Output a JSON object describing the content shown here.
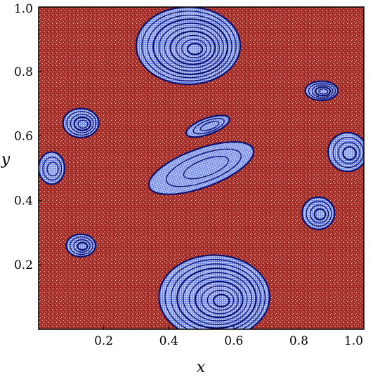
{
  "chart_data": {
    "type": "heatmap",
    "title": "",
    "xlabel": "x",
    "ylabel": "y",
    "xlim": [
      0.0,
      1.0
    ],
    "ylim": [
      0.0,
      1.0
    ],
    "xticks": [
      0.2,
      0.4,
      0.6,
      0.8,
      1.0
    ],
    "xtick_labels": [
      "0.2",
      "0.4",
      "0.6",
      "0.8",
      "1.0"
    ],
    "yticks": [
      0.2,
      0.4,
      0.6,
      0.8,
      1.0
    ],
    "ytick_labels": [
      "0.2",
      "0.4",
      "0.6",
      "0.8",
      "1.0"
    ],
    "grid": false,
    "legend": "none",
    "colors": {
      "chaotic": "#a8302a",
      "chaotic_light": "#e39a92",
      "regular_fill": "#6f87e6",
      "regular_light": "#c4cff5",
      "orbit": "#0a0f6e",
      "frame": "#000000"
    },
    "islands": [
      {
        "x": 0.46,
        "y": 0.88,
        "rx": 0.16,
        "ry": 0.12,
        "rings": 10
      },
      {
        "x": 0.54,
        "y": 0.1,
        "rx": 0.17,
        "ry": 0.13,
        "rings": 10
      },
      {
        "x": 0.5,
        "y": 0.5,
        "rx": 0.17,
        "ry": 0.06,
        "rings": 3,
        "angle": 20
      },
      {
        "x": 0.13,
        "y": 0.64,
        "rx": 0.055,
        "ry": 0.045,
        "rings": 5
      },
      {
        "x": 0.13,
        "y": 0.26,
        "rx": 0.045,
        "ry": 0.035,
        "rings": 4
      },
      {
        "x": 0.87,
        "y": 0.74,
        "rx": 0.05,
        "ry": 0.03,
        "rings": 5
      },
      {
        "x": 0.86,
        "y": 0.36,
        "rx": 0.05,
        "ry": 0.05,
        "rings": 4
      },
      {
        "x": 0.04,
        "y": 0.5,
        "rx": 0.04,
        "ry": 0.05,
        "rings": 3
      },
      {
        "x": 0.95,
        "y": 0.55,
        "rx": 0.06,
        "ry": 0.06,
        "rings": 4
      },
      {
        "x": 0.52,
        "y": 0.63,
        "rx": 0.07,
        "ry": 0.025,
        "rings": 3,
        "angle": 20
      }
    ]
  }
}
